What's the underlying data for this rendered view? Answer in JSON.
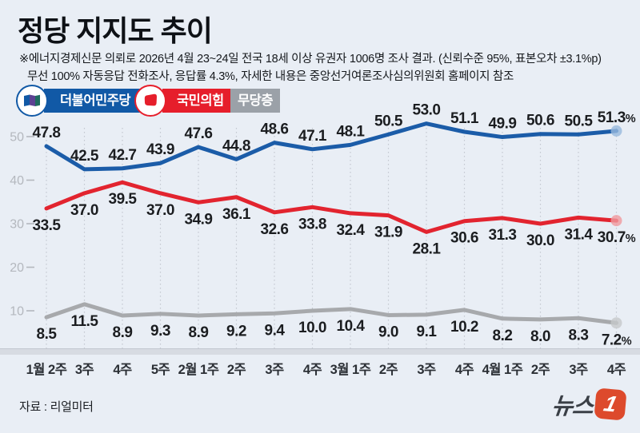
{
  "title": "정당 지지도 추이",
  "subtitle_line1": "※에너지경제신문 의뢰로 2026년 4월 23~24일 전국 18세 이상 유권자 1006명 조사 결과. (신뢰수준 95%, 표본오차 ±3.1%p)",
  "subtitle_line2": "무선 100% 자동응답 전화조사, 응답률 4.3%, 자세한 내용은 중앙선거여론조사심의위원회 홈페이지 참조",
  "legend": {
    "items": [
      {
        "label": "더불어민주당",
        "color": "#1159a6"
      },
      {
        "label": "국민의힘",
        "color": "#e61e2b"
      },
      {
        "label": "무당층",
        "color": "#9ba1a8"
      }
    ]
  },
  "chart_data": {
    "type": "line",
    "x": [
      "1월 2주",
      "3주",
      "4주",
      "5주",
      "2월 1주",
      "2주",
      "3주",
      "4주",
      "3월 1주",
      "2주",
      "3주",
      "4주",
      "4월 1주",
      "2주",
      "3주",
      "4주"
    ],
    "series": [
      {
        "key": "democratic-party",
        "name": "더불어민주당",
        "color": "#1b5ca8",
        "marker_fill": "#97b9dd",
        "label_pos": "above",
        "values": [
          47.8,
          42.5,
          42.7,
          43.9,
          47.6,
          44.8,
          48.6,
          47.1,
          48.1,
          50.5,
          53.0,
          51.1,
          49.9,
          50.6,
          50.5,
          51.3
        ]
      },
      {
        "key": "people-power-party",
        "name": "국민의힘",
        "color": "#e2242f",
        "marker_fill": "#f0989e",
        "label_pos": "below",
        "values": [
          33.5,
          37.0,
          39.5,
          37.0,
          34.9,
          36.1,
          32.6,
          33.8,
          32.4,
          31.9,
          28.1,
          30.6,
          31.3,
          30.0,
          31.4,
          30.7
        ]
      },
      {
        "key": "independents",
        "name": "무당층",
        "color": "#a7a9ac",
        "marker_fill": "#c6c8cb",
        "label_pos": "below",
        "values": [
          8.5,
          11.5,
          8.9,
          9.3,
          8.9,
          9.2,
          9.4,
          10.0,
          10.4,
          9.0,
          9.1,
          10.2,
          8.2,
          8.0,
          8.3,
          7.2
        ]
      }
    ],
    "yticks": [
      10,
      20,
      30,
      40,
      50
    ],
    "ylim": [
      0,
      55
    ],
    "last_label_suffix": "%",
    "grid": "vertical-dotted",
    "legend_position": "top-left"
  },
  "footer": {
    "source": "자료 : 리얼미터",
    "logo_text": "뉴스",
    "logo_number": "1"
  }
}
